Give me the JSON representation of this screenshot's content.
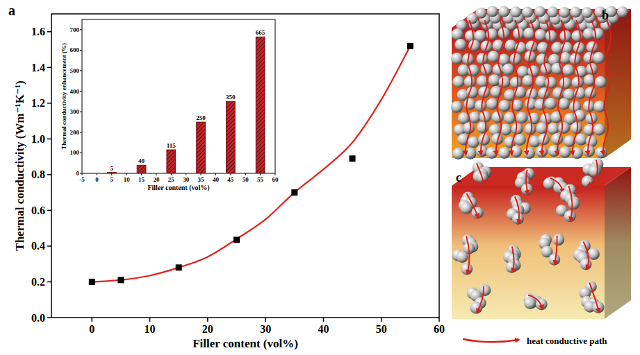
{
  "chart_data": [
    {
      "type": "scatter",
      "panel_label": "a",
      "xlabel": "Filler content (vol%)",
      "ylabel": "Thermal conductivity (Wm⁻¹K⁻¹)",
      "series": [
        {
          "type": "scatter",
          "marker": "square",
          "color": "#000000",
          "x": [
            0,
            5,
            15,
            25,
            35,
            45,
            55
          ],
          "values": [
            0.2,
            0.21,
            0.28,
            0.435,
            0.7,
            0.89,
            1.52
          ]
        },
        {
          "type": "line",
          "line_style": "solid",
          "color": "#e3211c",
          "x": [
            0,
            5,
            10,
            15,
            20,
            25,
            30,
            35,
            40,
            45,
            50,
            55
          ],
          "values": [
            0.2,
            0.21,
            0.235,
            0.28,
            0.34,
            0.44,
            0.55,
            0.7,
            0.83,
            0.98,
            1.22,
            1.52
          ]
        }
      ],
      "xlim": [
        -7,
        60
      ],
      "xticks": [
        0,
        10,
        20,
        30,
        40,
        50,
        60
      ],
      "ylim": [
        0,
        1.7
      ],
      "yticks": [
        {
          "value": 0,
          "label": "0.0"
        },
        0.2,
        0.4,
        0.6,
        0.8,
        {
          "value": 1,
          "label": "1.0"
        },
        1.2,
        1.4,
        1.6
      ],
      "grid": false
    },
    {
      "type": "bar",
      "xlabel": "Filler content (vol%)",
      "ylabel": "Thermal conductivity enhancement (%)",
      "x": [
        5,
        15,
        25,
        35,
        45,
        55
      ],
      "values": [
        5,
        40,
        115,
        250,
        350,
        665
      ],
      "color": "#c0272d",
      "data_labels": true,
      "xlim": [
        -5,
        60
      ],
      "xticks": [
        -5,
        0,
        5,
        10,
        15,
        20,
        25,
        30,
        35,
        40,
        45,
        50,
        55,
        60
      ],
      "ylim": [
        0,
        750
      ],
      "yticks": [
        0,
        100,
        200,
        300,
        400,
        500,
        600,
        700
      ],
      "grid": false
    }
  ],
  "diagram": {
    "panels": [
      {
        "label": "b"
      },
      {
        "label": "c"
      }
    ],
    "key_label": "heat conductive path"
  }
}
